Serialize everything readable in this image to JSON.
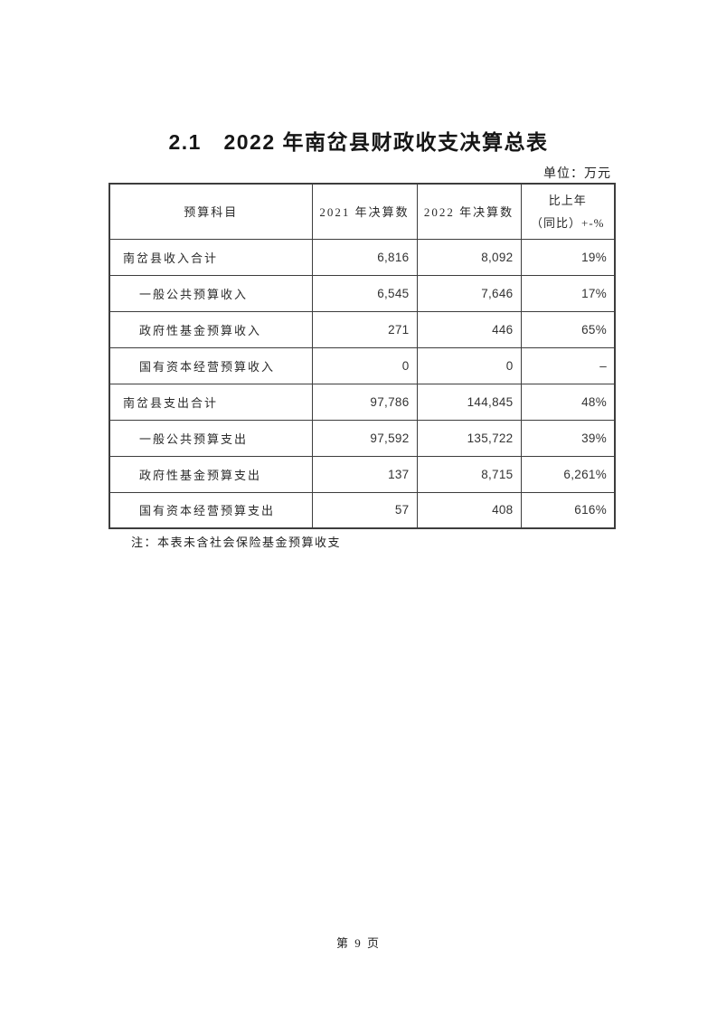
{
  "page": {
    "title": "2.1　2022 年南岔县财政收支决算总表",
    "unit_label": "单位：万元",
    "note": "注：本表未含社会保险基金预算收支",
    "footer": "第 9 页"
  },
  "table": {
    "headers": [
      "预算科目",
      "2021 年决算数",
      "2022 年决算数"
    ],
    "yoy_header": {
      "line1": "比上年",
      "line2": "（同比）+-%"
    },
    "rows": [
      {
        "label": "南岔县收入合计",
        "v2021": "6,816",
        "v2022": "8,092",
        "yoy": "19%"
      },
      {
        "label": "一般公共预算收入",
        "v2021": "6,545",
        "v2022": "7,646",
        "yoy": "17%"
      },
      {
        "label": "政府性基金预算收入",
        "v2021": "271",
        "v2022": "446",
        "yoy": "65%"
      },
      {
        "label": "国有资本经营预算收入",
        "v2021": "0",
        "v2022": "0",
        "yoy": "–"
      },
      {
        "label": "南岔县支出合计",
        "v2021": "97,786",
        "v2022": "144,845",
        "yoy": "48%"
      },
      {
        "label": "一般公共预算支出",
        "v2021": "97,592",
        "v2022": "135,722",
        "yoy": "39%"
      },
      {
        "label": "政府性基金预算支出",
        "v2021": "137",
        "v2022": "8,715",
        "yoy": "6,261%"
      },
      {
        "label": "国有资本经营预算支出",
        "v2021": "57",
        "v2022": "408",
        "yoy": "616%"
      }
    ]
  }
}
